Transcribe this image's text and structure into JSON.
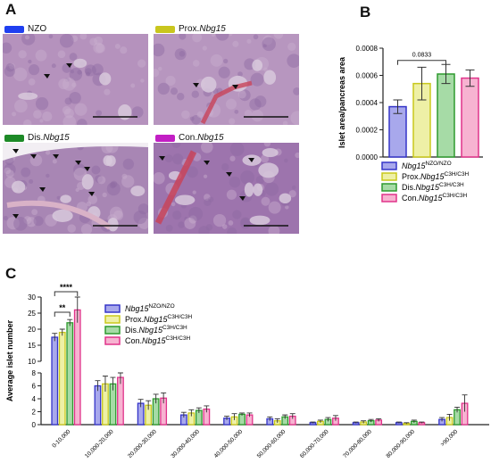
{
  "panels": {
    "A": {
      "letter": "A",
      "tiles": [
        {
          "label": "NZO",
          "label_italic": "",
          "swatch": "#1f3ff0"
        },
        {
          "label": "Prox.",
          "label_italic": "Nbg15",
          "swatch": "#c9c61e"
        },
        {
          "label": "Dis.",
          "label_italic": "Nbg15",
          "swatch": "#1d8a27"
        },
        {
          "label": "Con.",
          "label_italic": "Nbg15",
          "swatch": "#c21fc4"
        }
      ]
    },
    "B": {
      "letter": "B"
    },
    "C": {
      "letter": "C"
    }
  },
  "chart_data": [
    {
      "panel": "B",
      "type": "bar",
      "categories": [
        "Nbg15 NZO/NZO",
        "Prox.Nbg15 C3H/C3H",
        "Dis.Nbg15 C3H/C3H",
        "Con.Nbg15 C3H/C3H"
      ],
      "values": [
        0.00037,
        0.00054,
        0.00061,
        0.00058
      ],
      "errors": [
        5e-05,
        0.00012,
        7e-05,
        6e-05
      ],
      "ylabel": "Islet area/pancreas area",
      "ylim": [
        0,
        0.0008
      ],
      "yticks": [
        "0.0000",
        "0.0002",
        "0.0004",
        "0.0006",
        "0.0008"
      ],
      "annotation": {
        "text": "0.0833",
        "between": [
          0,
          2
        ]
      },
      "legend": [
        {
          "prefix": "",
          "italic": "Nbg15",
          "sup": "NZO/NZO"
        },
        {
          "prefix": "Prox.",
          "italic": "Nbg15",
          "sup": "C3H/C3H"
        },
        {
          "prefix": "Dis.",
          "italic": "Nbg15",
          "sup": "C3H/C3H"
        },
        {
          "prefix": "Con.",
          "italic": "Nbg15",
          "sup": "C3H/C3H"
        }
      ],
      "colors": {
        "fill": [
          "#a8a8ec",
          "#eef0a6",
          "#a6dba6",
          "#f7b3d1"
        ],
        "stroke": [
          "#3535c8",
          "#c8c81c",
          "#2e9a2e",
          "#e0338a"
        ]
      }
    },
    {
      "panel": "C",
      "type": "bar",
      "categories": [
        "0-10,000",
        "10,000-20,000",
        "20,000-30,000",
        "30,000-40,000",
        "40,000-50,000",
        "50,000-60,000",
        "60,000-70,000",
        "70,000-80,000",
        "80,000-90,000",
        ">90,000"
      ],
      "series": [
        {
          "name": "Nbg15 NZO/NZO",
          "values": [
            17.5,
            6.0,
            3.3,
            1.5,
            1.0,
            0.9,
            0.3,
            0.3,
            0.3,
            0.8
          ],
          "errors": [
            1.2,
            0.8,
            0.6,
            0.4,
            0.3,
            0.3,
            0.1,
            0.1,
            0.1,
            0.3
          ]
        },
        {
          "name": "Prox.Nbg15 C3H/C3H",
          "values": [
            19.0,
            6.3,
            3.0,
            1.8,
            1.2,
            0.6,
            0.5,
            0.4,
            0.2,
            1.1
          ],
          "errors": [
            1.0,
            1.2,
            0.7,
            0.5,
            0.5,
            0.3,
            0.2,
            0.2,
            0.1,
            0.5
          ]
        },
        {
          "name": "Dis.Nbg15 C3H/C3H",
          "values": [
            22.0,
            6.3,
            4.0,
            2.2,
            1.6,
            1.2,
            0.8,
            0.6,
            0.5,
            2.3
          ],
          "errors": [
            1.0,
            1.0,
            0.7,
            0.4,
            0.2,
            0.3,
            0.3,
            0.2,
            0.2,
            0.4
          ]
        },
        {
          "name": "Con.Nbg15 C3H/C3H",
          "values": [
            26.0,
            7.3,
            4.1,
            2.4,
            1.5,
            1.3,
            1.0,
            0.7,
            0.3,
            3.3
          ],
          "errors": [
            4.0,
            1.0,
            0.8,
            0.5,
            0.3,
            0.4,
            0.4,
            0.2,
            0.1,
            1.3
          ]
        }
      ],
      "ylabel": "Average islet number",
      "ylim": [
        0,
        30
      ],
      "axis_break": [
        8,
        10
      ],
      "yticks_lower": [
        "0",
        "2",
        "4",
        "6",
        "8"
      ],
      "yticks_upper": [
        "10",
        "15",
        "20",
        "25",
        "30"
      ],
      "significance": [
        {
          "text": "****",
          "between": [
            0,
            3
          ]
        },
        {
          "text": "**",
          "between": [
            0,
            2
          ]
        }
      ],
      "legend": [
        {
          "prefix": "",
          "italic": "Nbg15",
          "sup": "NZO/NZO"
        },
        {
          "prefix": "Prox.",
          "italic": "Nbg15",
          "sup": "C3H/C3H"
        },
        {
          "prefix": "Dis.",
          "italic": "Nbg15",
          "sup": "C3H/C3H"
        },
        {
          "prefix": "Con.",
          "italic": "Nbg15",
          "sup": "C3H/C3H"
        }
      ],
      "colors": {
        "fill": [
          "#a8a8ec",
          "#eef0a6",
          "#a6dba6",
          "#f7b3d1"
        ],
        "stroke": [
          "#3535c8",
          "#c8c81c",
          "#2e9a2e",
          "#e0338a"
        ]
      }
    }
  ]
}
